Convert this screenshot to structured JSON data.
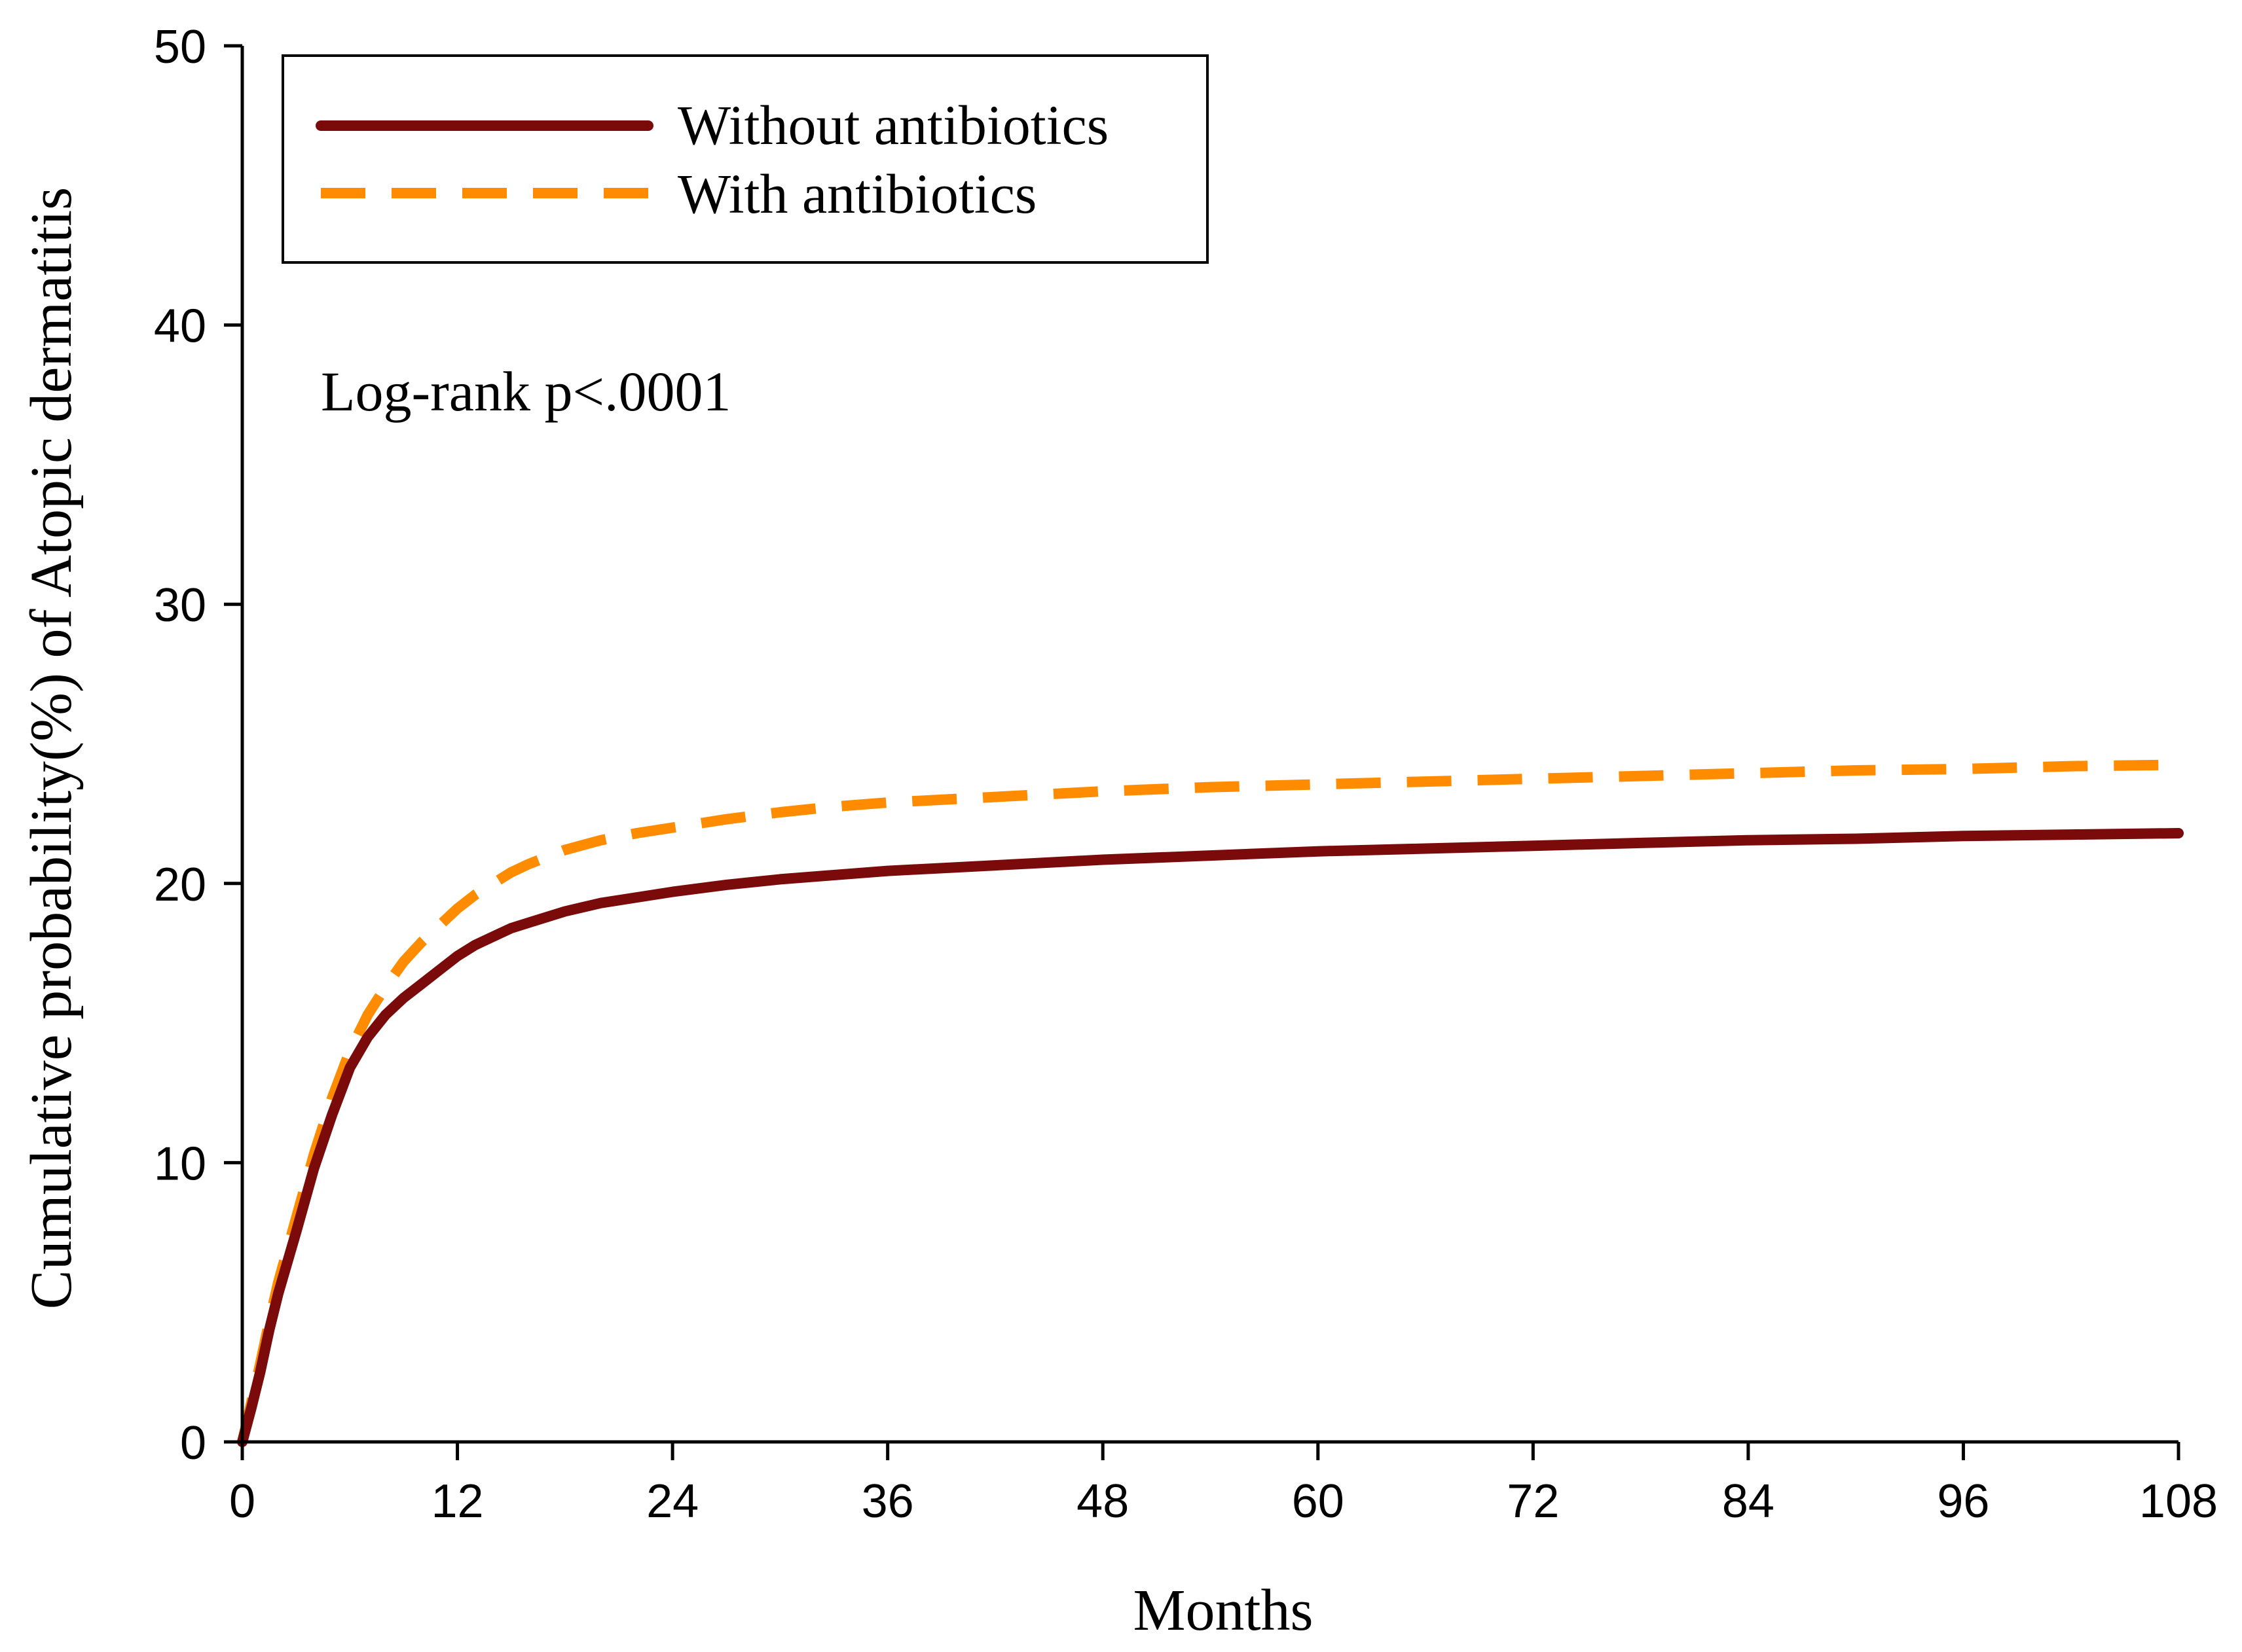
{
  "chart_data": {
    "type": "line",
    "xlabel": "Months",
    "ylabel": "Cumulative probability(%) of Atopic dermatitis",
    "xlim": [
      0,
      108
    ],
    "ylim": [
      0,
      50
    ],
    "xticks": [
      0,
      12,
      24,
      36,
      48,
      60,
      72,
      84,
      96,
      108
    ],
    "yticks": [
      0,
      10,
      20,
      30,
      40,
      50
    ],
    "grid": false,
    "legend_position": "top-left",
    "annotation": "Log-rank p<.0001",
    "series": [
      {
        "name": "Without antibiotics",
        "color": "#7b0a0a",
        "style": "solid",
        "x": [
          0,
          0.5,
          1,
          1.5,
          2,
          3,
          4,
          5,
          6,
          7,
          8,
          9,
          10,
          11,
          12,
          13,
          14,
          15,
          16,
          18,
          20,
          22,
          24,
          27,
          30,
          33,
          36,
          42,
          48,
          54,
          60,
          66,
          72,
          78,
          84,
          90,
          96,
          102,
          108
        ],
        "y": [
          0,
          1.2,
          2.5,
          4,
          5.3,
          7.5,
          9.8,
          11.7,
          13.4,
          14.5,
          15.3,
          15.9,
          16.4,
          16.9,
          17.4,
          17.8,
          18.1,
          18.4,
          18.6,
          19.0,
          19.3,
          19.5,
          19.7,
          19.95,
          20.15,
          20.3,
          20.45,
          20.65,
          20.85,
          21.0,
          21.15,
          21.25,
          21.35,
          21.45,
          21.55,
          21.6,
          21.7,
          21.75,
          21.8
        ]
      },
      {
        "name": "With antibiotics",
        "color": "#ff8c00",
        "style": "dashed",
        "x": [
          0,
          0.5,
          1,
          1.5,
          2,
          3,
          4,
          5,
          6,
          7,
          8,
          9,
          10,
          11,
          12,
          13,
          14,
          15,
          16,
          18,
          20,
          22,
          24,
          27,
          30,
          33,
          36,
          42,
          48,
          54,
          60,
          66,
          72,
          78,
          84,
          90,
          96,
          102,
          108
        ],
        "y": [
          0,
          1.4,
          2.8,
          4.3,
          5.7,
          8.0,
          10.3,
          12.3,
          14.0,
          15.3,
          16.3,
          17.2,
          17.9,
          18.5,
          19.1,
          19.6,
          20.0,
          20.4,
          20.7,
          21.2,
          21.55,
          21.8,
          22.0,
          22.3,
          22.55,
          22.75,
          22.9,
          23.1,
          23.3,
          23.45,
          23.55,
          23.65,
          23.75,
          23.85,
          23.95,
          24.05,
          24.1,
          24.2,
          24.25
        ]
      }
    ]
  }
}
